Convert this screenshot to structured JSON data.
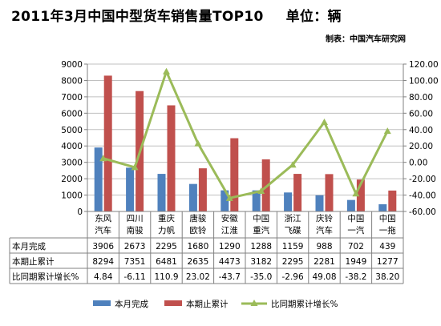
{
  "title": {
    "main": "2011年3月中国中型货车销售量TOP10",
    "unit": "单位：辆",
    "maker": "制表：中国汽车研究网"
  },
  "colors": {
    "monthly": "#4f81bd",
    "cumulative": "#c0504d",
    "growth": "#9bbb59",
    "grid": "#c0c0c0",
    "border": "#808080"
  },
  "chart_data": {
    "type": "bar",
    "categories": [
      [
        "东风",
        "汽车"
      ],
      [
        "四川",
        "南骏"
      ],
      [
        "重庆",
        "力帆"
      ],
      [
        "唐骏",
        "欧铃"
      ],
      [
        "安徽",
        "江淮"
      ],
      [
        "中国",
        "重汽"
      ],
      [
        "浙江",
        "飞碟"
      ],
      [
        "庆铃",
        "汽车"
      ],
      [
        "中国",
        "一汽"
      ],
      [
        "中国",
        "一拖"
      ]
    ],
    "series": [
      {
        "name": "本月完成",
        "kind": "bar",
        "axis": "left",
        "values": [
          3906,
          2673,
          2295,
          1680,
          1290,
          1288,
          1159,
          988,
          702,
          439
        ]
      },
      {
        "name": "本期止累计",
        "kind": "bar",
        "axis": "left",
        "values": [
          8294,
          7351,
          6481,
          2635,
          4473,
          3182,
          2295,
          2281,
          1949,
          1277
        ]
      },
      {
        "name": "比同期累计增长%",
        "kind": "line",
        "axis": "right",
        "values": [
          4.84,
          -6.11,
          110.9,
          23.02,
          -43.7,
          -35.0,
          -2.96,
          49.08,
          -38.2,
          38.2
        ]
      }
    ],
    "left_axis": {
      "min": 0,
      "max": 9000,
      "step": 1000,
      "ticks": [
        "0",
        "1000",
        "2000",
        "3000",
        "4000",
        "5000",
        "6000",
        "7000",
        "8000",
        "9000"
      ]
    },
    "right_axis": {
      "min": -60,
      "max": 120,
      "step": 20,
      "ticks": [
        "-60.00",
        "-40.00",
        "-20.00",
        "0.00",
        "20.00",
        "40.00",
        "60.00",
        "80.00",
        "100.00",
        "120.00"
      ]
    },
    "grid": true,
    "legend_position": "bottom"
  },
  "table": {
    "row_labels": [
      "本月完成",
      "本期止累计",
      "比同期累计增长%"
    ],
    "rows": [
      [
        "3906",
        "2673",
        "2295",
        "1680",
        "1290",
        "1288",
        "1159",
        "988",
        "702",
        "439"
      ],
      [
        "8294",
        "7351",
        "6481",
        "2635",
        "4473",
        "3182",
        "2295",
        "2281",
        "1949",
        "1277"
      ],
      [
        "4.84",
        "-6.11",
        "110.9",
        "23.02",
        "-43.7",
        "-35.0",
        "-2.96",
        "49.08",
        "-38.2",
        "38.20"
      ]
    ]
  },
  "legend": [
    "本月完成",
    "本期止累计",
    "比同期累计增长%"
  ]
}
